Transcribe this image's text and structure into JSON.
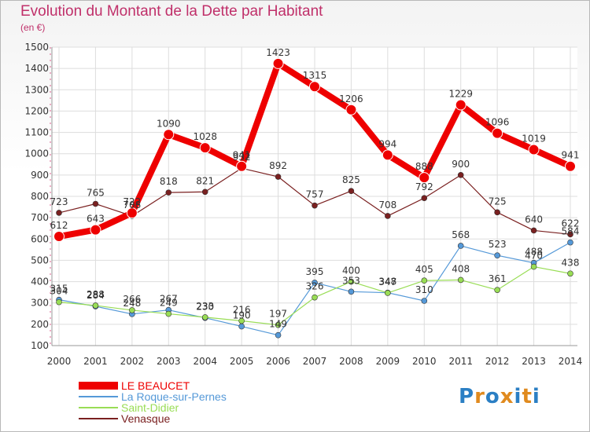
{
  "header": {
    "title": "Evolution du Montant de la Dette par Habitant",
    "unit": "(en €)"
  },
  "logo": {
    "text": "Proxiti",
    "letters": [
      "P",
      "r",
      "o",
      "x",
      "i",
      "t",
      "i"
    ],
    "letter_colors": [
      "#2b7fc4",
      "#e08a1e",
      "#2b7fc4",
      "#e08a1e",
      "#2b7fc4",
      "#e08a1e",
      "#2b7fc4"
    ]
  },
  "chart_data": {
    "type": "line",
    "title": "Evolution du Montant de la Dette par Habitant",
    "subtitle": "(en €)",
    "x": [
      2000,
      2001,
      2002,
      2003,
      2004,
      2005,
      2006,
      2007,
      2008,
      2009,
      2010,
      2011,
      2012,
      2013,
      2014
    ],
    "ylim": [
      100,
      1500
    ],
    "yticks": [
      100,
      200,
      300,
      400,
      500,
      600,
      700,
      800,
      900,
      1000,
      1100,
      1200,
      1300,
      1400,
      1500
    ],
    "grid": true,
    "legend_position": "bottom-left",
    "series": [
      {
        "name": "LE BEAUCET",
        "color": "#ee0000",
        "values": [
          612,
          643,
          722,
          1090,
          1028,
          941,
          1423,
          1315,
          1206,
          994,
          888,
          1229,
          1096,
          1019,
          941
        ]
      },
      {
        "name": "La Roque-sur-Pernes",
        "color": "#5599d8",
        "values": [
          315,
          284,
          248,
          267,
          230,
          190,
          149,
          395,
          353,
          348,
          310,
          568,
          523,
          488,
          584
        ]
      },
      {
        "name": "Saint-Didier",
        "color": "#99dd55",
        "values": [
          304,
          288,
          266,
          249,
          233,
          216,
          197,
          326,
          400,
          347,
          405,
          408,
          361,
          470,
          438
        ]
      },
      {
        "name": "Venasque",
        "color": "#7a2020",
        "values": [
          723,
          765,
          708,
          818,
          821,
          932,
          892,
          757,
          825,
          708,
          792,
          900,
          725,
          640,
          622
        ]
      }
    ]
  }
}
